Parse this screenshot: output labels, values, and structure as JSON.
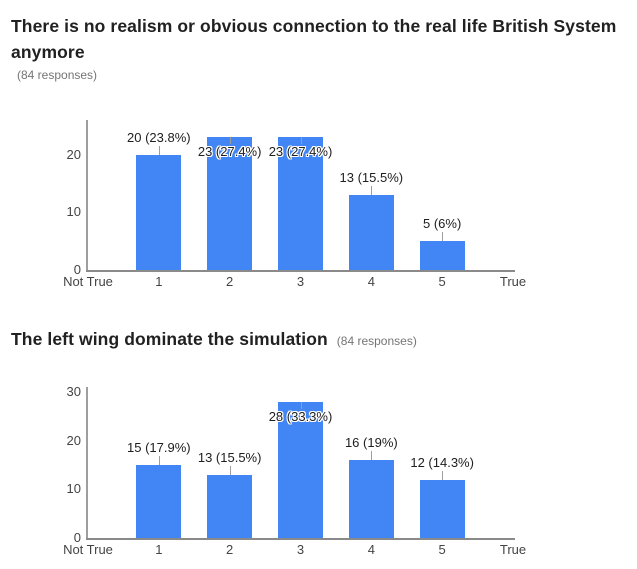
{
  "chart_data": [
    {
      "type": "bar",
      "title": "There is no realism or obvious connection to the real life British System anymore",
      "subtitle": "(84 responses)",
      "categories": [
        "1",
        "2",
        "3",
        "4",
        "5"
      ],
      "values": [
        20,
        23,
        23,
        13,
        5
      ],
      "bar_labels": [
        "20 (23.8%)",
        "23 (27.4%)",
        "23 (27.4%)",
        "13 (15.5%)",
        "5 (6%)"
      ],
      "x_axis_labels": [
        "Not True",
        "1",
        "2",
        "3",
        "4",
        "5",
        "True"
      ],
      "yticks": [
        0,
        10,
        20
      ],
      "ylim": [
        0,
        26
      ],
      "xlabel": "",
      "ylabel": "",
      "grid": false,
      "legend": "none",
      "bar_color": "#4285f4",
      "total_responses": 84
    },
    {
      "type": "bar",
      "title": "The left wing dominate the simulation",
      "subtitle": "(84 responses)",
      "categories": [
        "1",
        "2",
        "3",
        "4",
        "5"
      ],
      "values": [
        15,
        13,
        28,
        16,
        12
      ],
      "bar_labels": [
        "15 (17.9%)",
        "13 (15.5%)",
        "28 (33.3%)",
        "16 (19%)",
        "12 (14.3%)"
      ],
      "x_axis_labels": [
        "Not True",
        "1",
        "2",
        "3",
        "4",
        "5",
        "True"
      ],
      "yticks": [
        0,
        10,
        20,
        30
      ],
      "ylim": [
        0,
        31
      ],
      "xlabel": "",
      "ylabel": "",
      "grid": false,
      "legend": "none",
      "bar_color": "#4285f4",
      "total_responses": 84
    }
  ]
}
